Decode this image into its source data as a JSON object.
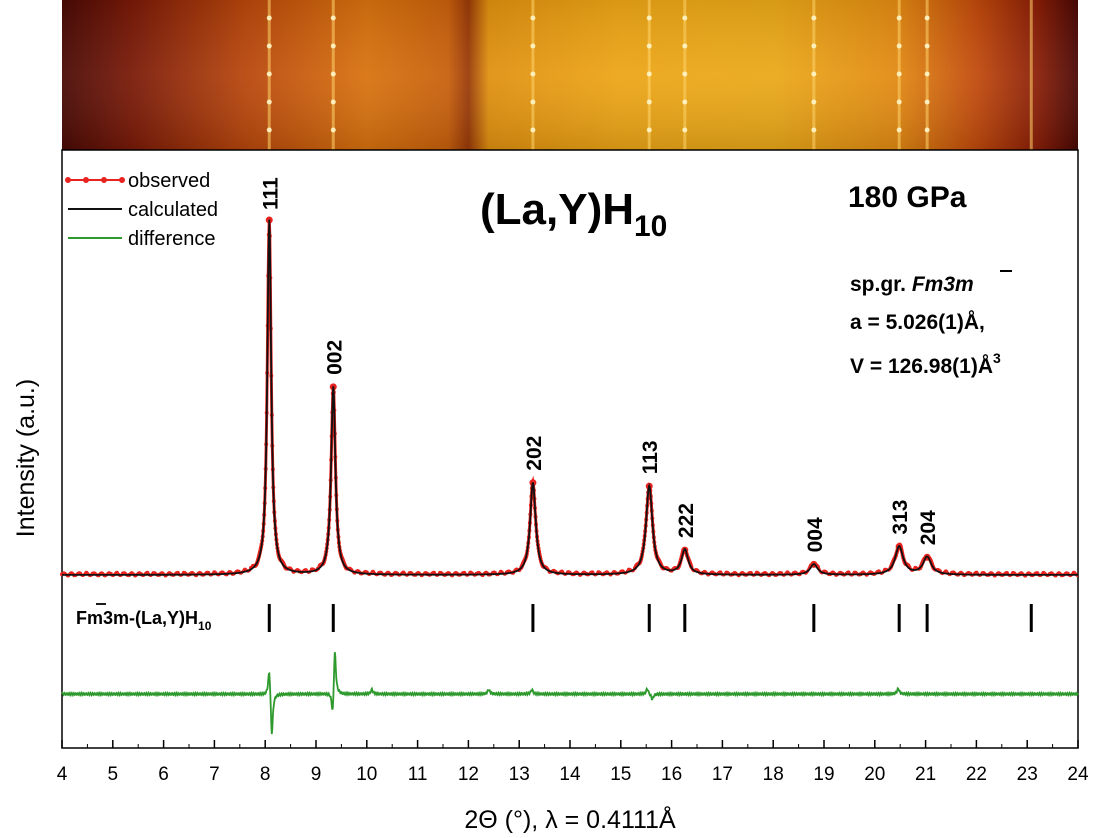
{
  "chart_data": {
    "type": "line",
    "title": "(La,Y)H",
    "title_subscript": "10",
    "pressure": "180 GPa",
    "xlabel": "2Θ (°), λ = 0.4111Å",
    "ylabel": "Intensity (a.u.)",
    "xlim": [
      4,
      24
    ],
    "xticks": [
      "4",
      "5",
      "6",
      "7",
      "8",
      "9",
      "10",
      "11",
      "12",
      "13",
      "14",
      "15",
      "16",
      "17",
      "18",
      "19",
      "20",
      "21",
      "22",
      "23",
      "24"
    ],
    "legend_position": "top-left",
    "legend": [
      "observed",
      "calculated",
      "difference"
    ],
    "structure_info": {
      "spacegroup_prefix": "sp.gr. ",
      "spacegroup": "Fm3m",
      "lattice": "a = 5.026(1)Å,",
      "volume": "V = 126.98(1)Å",
      "volume_exp": "3"
    },
    "phase_label": "Fm3m-(La,Y)H",
    "phase_label_subscript": "10",
    "peaks": [
      {
        "hkl": "111",
        "x": 8.08,
        "y": 1.0
      },
      {
        "hkl": "002",
        "x": 9.34,
        "y": 0.53
      },
      {
        "hkl": "202",
        "x": 13.27,
        "y": 0.26
      },
      {
        "hkl": "113",
        "x": 15.56,
        "y": 0.25
      },
      {
        "hkl": "222",
        "x": 16.26,
        "y": 0.07
      },
      {
        "hkl": "004",
        "x": 18.8,
        "y": 0.03
      },
      {
        "hkl": "313",
        "x": 20.48,
        "y": 0.08
      },
      {
        "hkl": "204",
        "x": 21.03,
        "y": 0.05
      }
    ],
    "reflection_ticks": [
      8.08,
      9.34,
      13.27,
      15.56,
      16.26,
      18.8,
      20.48,
      21.03,
      23.08
    ],
    "series": [
      {
        "name": "observed",
        "color": "#e8221e"
      },
      {
        "name": "calculated",
        "color": "#111111"
      },
      {
        "name": "difference",
        "color": "#2e9a2e"
      }
    ],
    "difference_features": [
      {
        "x": 8.08,
        "y": 0.33
      },
      {
        "x": 8.13,
        "y": -0.5
      },
      {
        "x": 9.33,
        "y": -0.32
      },
      {
        "x": 9.37,
        "y": 0.55
      },
      {
        "x": 10.1,
        "y": 0.05
      },
      {
        "x": 12.4,
        "y": 0.05
      },
      {
        "x": 13.25,
        "y": 0.05
      },
      {
        "x": 15.52,
        "y": 0.06
      },
      {
        "x": 15.62,
        "y": -0.06
      },
      {
        "x": 20.46,
        "y": 0.06
      }
    ]
  }
}
